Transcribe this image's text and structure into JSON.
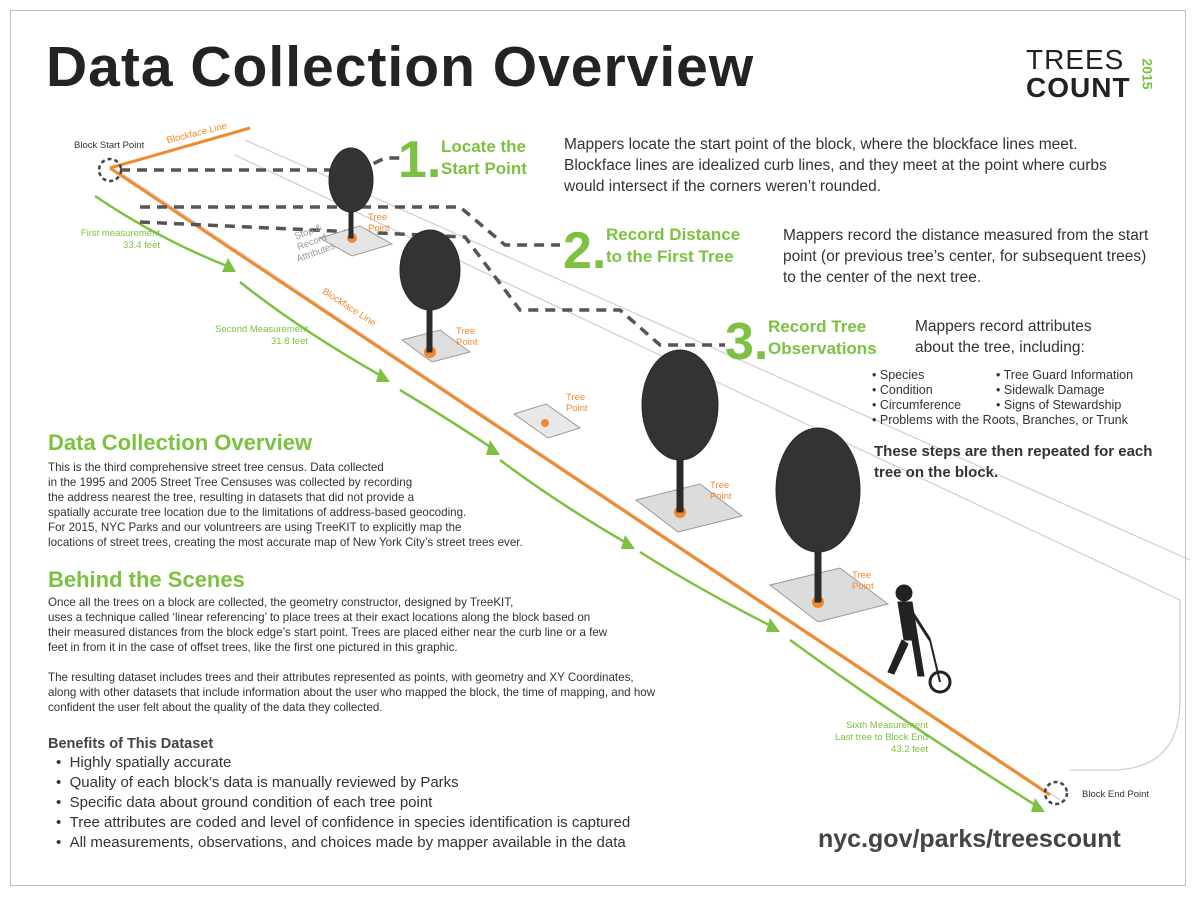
{
  "header": {
    "title": "Data Collection Overview",
    "logo_line1": "TREES",
    "logo_line2": "COUNT",
    "logo_year": "2015"
  },
  "colors": {
    "accent_green": "#7dc142",
    "accent_orange": "#f08a2e",
    "text": "#333333",
    "dash": "#555555"
  },
  "steps": [
    {
      "number": "1.",
      "title_l1": "Locate the",
      "title_l2": "Start Point",
      "text": "Mappers locate the start point of the block, where the blockface lines meet. Blockface lines are idealized curb lines, and they meet at the point where curbs would intersect if the corners weren’t rounded."
    },
    {
      "number": "2.",
      "title_l1": "Record Distance",
      "title_l2": "to the First Tree",
      "text": "Mappers record the distance measured from the start point (or previous tree’s center, for subsequent trees) to the center of the next tree."
    },
    {
      "number": "3.",
      "title_l1": "Record Tree",
      "title_l2": "Observations",
      "text": "Mappers record attributes about the tree, including:"
    }
  ],
  "attributes_left": [
    "Species",
    "Condition",
    "Circumference"
  ],
  "attributes_right": [
    "Tree Guard Information",
    "Sidewalk Damage",
    "Signs of Stewardship"
  ],
  "attributes_full": "Problems with the Roots, Branches, or Trunk",
  "repeat_note": "These steps are then repeated for each tree on the block.",
  "diagram": {
    "block_start": "Block Start Point",
    "block_end": "Block End Point",
    "blockface_line": "Blockface Line",
    "stop_record": "Stop & Record Attributes",
    "tree_point": "Tree Point",
    "measurements": [
      {
        "label": "First measurement",
        "value": "33.4 feet"
      },
      {
        "label": "Second Measurement",
        "value": "31.8 feet"
      },
      {
        "label": "Sixth Measurement",
        "label2": "Last tree to Block End",
        "value": "43.2 feet"
      }
    ]
  },
  "overview": {
    "heading": "Data Collection Overview",
    "lines": [
      "This is the third comprehensive street tree census.  Data collected",
      "in the 1995 and 2005 Street Tree Censuses was collected by recording",
      "the address nearest the tree, resulting in datasets that did not provide a",
      "spatially accurate tree location due to the limitations of address-based geocoding.",
      "For 2015, NYC Parks and our voluntreers are using TreeKIT to explicitly map the",
      "locations of street trees, creating the most accurate map of New York City’s street trees ever."
    ]
  },
  "behind": {
    "heading": "Behind the Scenes",
    "lines": [
      "Once all the trees on a block are collected, the geometry constructor, designed by TreeKIT,",
      "uses a technique called ‘linear referencing’ to place trees at their exact locations along the block based on",
      "their measured distances from the block edge’s start point.  Trees are placed either near the curb line or a few",
      "feet in from it in the case of offset trees, like the first one pictured in this graphic."
    ],
    "lines2": [
      "The resulting dataset includes trees and their attributes represented as points, with geometry and XY Coordinates,",
      "along with other datasets that include information about the user who mapped the block, the time of mapping, and how",
      "confident the user felt about the quality of the data they collected."
    ]
  },
  "benefits": {
    "heading": "Benefits of This Dataset",
    "items": [
      "Highly spatially accurate",
      "Quality of each block’s data is manually reviewed by Parks",
      "Specific data about ground condition of each tree point",
      "Tree attributes are coded and level of confidence in species identification is captured",
      "All measurements, observations, and choices made by mapper available in the data"
    ]
  },
  "footer": {
    "url": "nyc.gov/parks/treescount"
  }
}
